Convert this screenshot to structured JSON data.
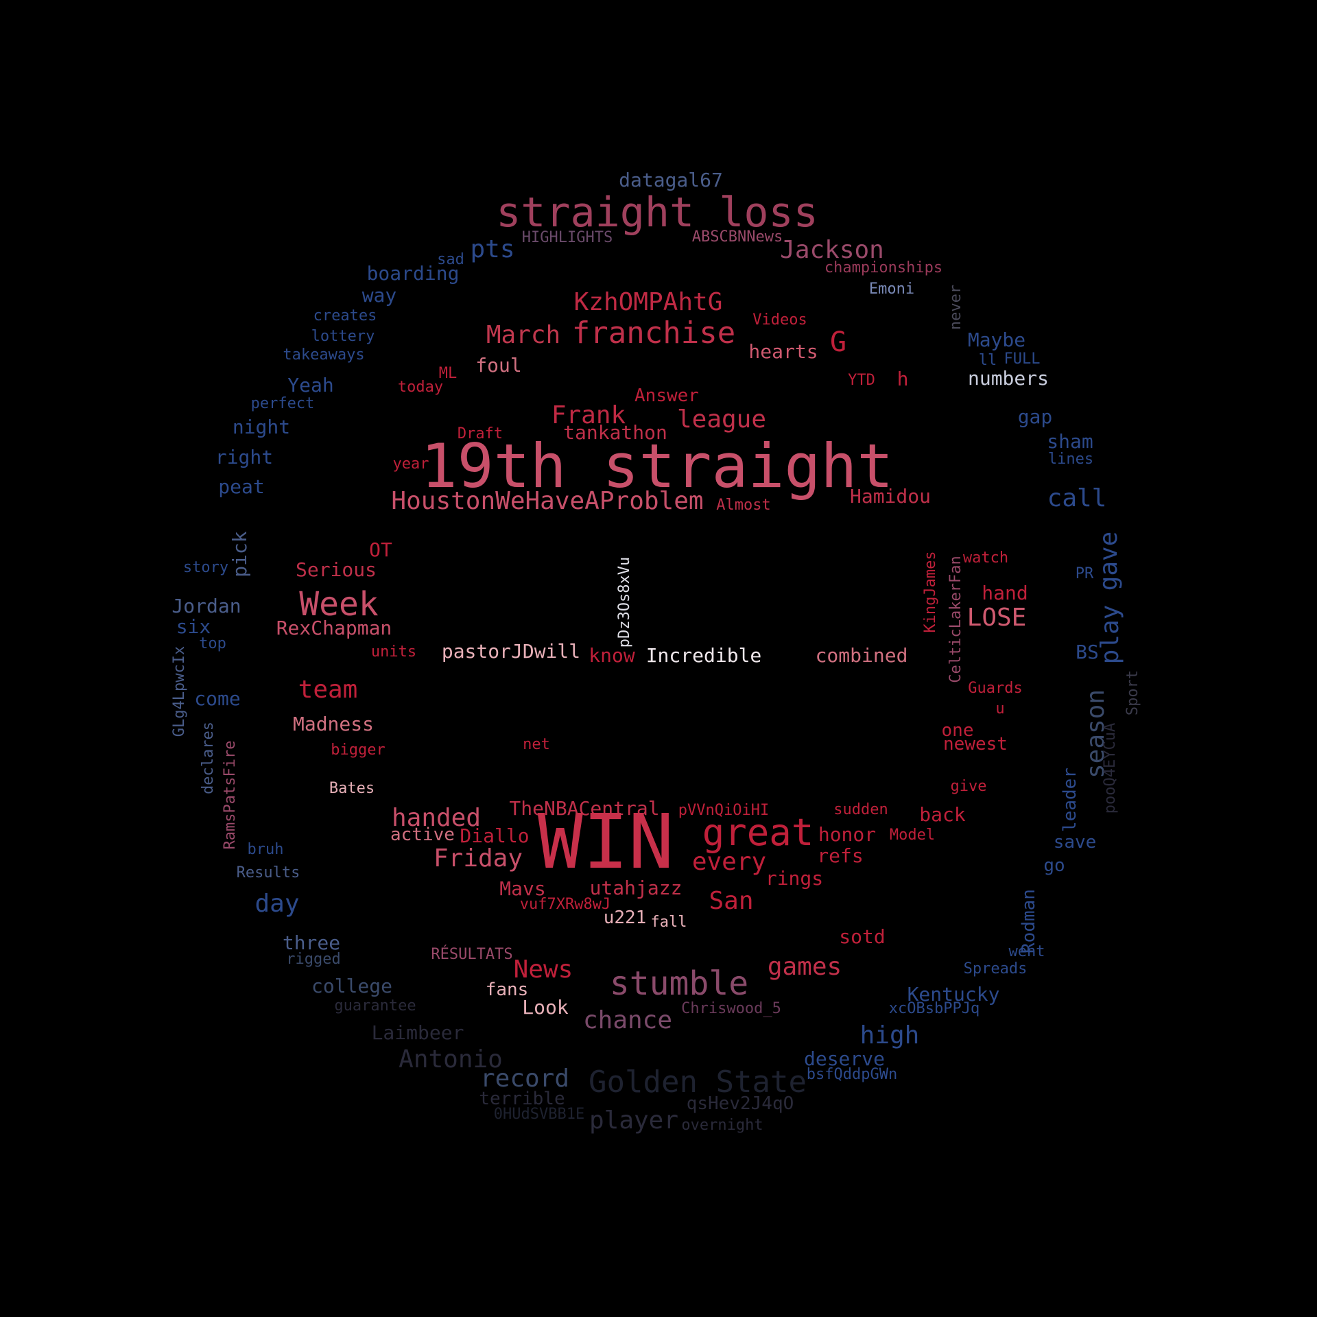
{
  "words": [
    {
      "text": "datagal67",
      "color": "#4a5d8a"
    },
    {
      "text": "straight loss",
      "color": "#a0405d"
    },
    {
      "text": "HIGHLIGHTS",
      "color": "#6a4a6a"
    },
    {
      "text": "ABSCBNNews",
      "color": "#9a4a6a"
    },
    {
      "text": "pts",
      "color": "#2c4a8c"
    },
    {
      "text": "sad",
      "color": "#2c4a8c"
    },
    {
      "text": "Jackson",
      "color": "#9a4a6a"
    },
    {
      "text": "championships",
      "color": "#9a3a5a"
    },
    {
      "text": "boarding",
      "color": "#2c4a8c"
    },
    {
      "text": "way",
      "color": "#2c4a8c"
    },
    {
      "text": "Emoni",
      "color": "#7a8ab8"
    },
    {
      "text": "never",
      "color": "#4a4a5a"
    },
    {
      "text": "KzhOMPAhtG",
      "color": "#c02a44"
    },
    {
      "text": "creates",
      "color": "#2c4a8c"
    },
    {
      "text": "Videos",
      "color": "#c0203a"
    },
    {
      "text": "lottery",
      "color": "#2c4a8c"
    },
    {
      "text": "March",
      "color": "#c0384e"
    },
    {
      "text": "franchise",
      "color": "#c0304a"
    },
    {
      "text": "G",
      "color": "#c0203a"
    },
    {
      "text": "Maybe",
      "color": "#2c4a8c"
    },
    {
      "text": "takeaways",
      "color": "#2c4a8c"
    },
    {
      "text": "hearts",
      "color": "#d05a70"
    },
    {
      "text": "ll",
      "color": "#2c4a8c"
    },
    {
      "text": "FULL",
      "color": "#2c4a8c"
    },
    {
      "text": "foul",
      "color": "#d07080"
    },
    {
      "text": "ML",
      "color": "#c0203a"
    },
    {
      "text": "Yeah",
      "color": "#2c4a8c"
    },
    {
      "text": "today",
      "color": "#c0203a"
    },
    {
      "text": "YTD",
      "color": "#c0203a"
    },
    {
      "text": "h",
      "color": "#c0203a"
    },
    {
      "text": "numbers",
      "color": "#c8ccdc"
    },
    {
      "text": "Answer",
      "color": "#c0203a"
    },
    {
      "text": "perfect",
      "color": "#2c4a8c"
    },
    {
      "text": "Frank",
      "color": "#c02a44"
    },
    {
      "text": "league",
      "color": "#c0304a"
    },
    {
      "text": "gap",
      "color": "#2c4a8c"
    },
    {
      "text": "night",
      "color": "#2c4a8c"
    },
    {
      "text": "Draft",
      "color": "#c0203a"
    },
    {
      "text": "tankathon",
      "color": "#c0304a"
    },
    {
      "text": "sham",
      "color": "#2c4a8c"
    },
    {
      "text": "right",
      "color": "#2c4a8c"
    },
    {
      "text": "19th straight",
      "color": "#c8506a"
    },
    {
      "text": "year",
      "color": "#c0203a"
    },
    {
      "text": "lines",
      "color": "#2c4a8c"
    },
    {
      "text": "peat",
      "color": "#2c4a8c"
    },
    {
      "text": "HoustonWeHaveAProblem",
      "color": "#c8506a"
    },
    {
      "text": "Almost",
      "color": "#c0304a"
    },
    {
      "text": "Hamidou",
      "color": "#c0304a"
    },
    {
      "text": "call",
      "color": "#2c4a8c"
    },
    {
      "text": "OT",
      "color": "#c0203a"
    },
    {
      "text": "pick",
      "color": "#4a5d8a"
    },
    {
      "text": "story",
      "color": "#2c4a8c"
    },
    {
      "text": "Serious",
      "color": "#c0304a"
    },
    {
      "text": "pDz3Os8xVu",
      "color": "#e0e0e8"
    },
    {
      "text": "KingJames",
      "color": "#c0203a"
    },
    {
      "text": "CelticLakerFan",
      "color": "#9a4a6a"
    },
    {
      "text": "watch",
      "color": "#c0203a"
    },
    {
      "text": "PR",
      "color": "#2c4a8c"
    },
    {
      "text": "gave",
      "color": "#2c4a8c"
    },
    {
      "text": "Week",
      "color": "#c8506a"
    },
    {
      "text": "hand",
      "color": "#c0203a"
    },
    {
      "text": "Jordan",
      "color": "#4a5d8a"
    },
    {
      "text": "LOSE",
      "color": "#d05a70"
    },
    {
      "text": "play",
      "color": "#2c4a8c"
    },
    {
      "text": "six",
      "color": "#2c4a8c"
    },
    {
      "text": "RexChapman",
      "color": "#c8506a"
    },
    {
      "text": "top",
      "color": "#2c4a8c"
    },
    {
      "text": "units",
      "color": "#c0203a"
    },
    {
      "text": "pastorJDwill",
      "color": "#e8b0b8"
    },
    {
      "text": "know",
      "color": "#c0203a"
    },
    {
      "text": "Incredible",
      "color": "#f0e8ec"
    },
    {
      "text": "combined",
      "color": "#d07080"
    },
    {
      "text": "BS",
      "color": "#2c4a8c"
    },
    {
      "text": "GLg4LpwcIx",
      "color": "#4a5d8a"
    },
    {
      "text": "Sport",
      "color": "#3a3a4a"
    },
    {
      "text": "team",
      "color": "#c0203a"
    },
    {
      "text": "Guards",
      "color": "#c0203a"
    },
    {
      "text": "come",
      "color": "#2c4a8c"
    },
    {
      "text": "u",
      "color": "#c0203a"
    },
    {
      "text": "Madness",
      "color": "#d07080"
    },
    {
      "text": "season",
      "color": "#3a4a6a"
    },
    {
      "text": "one",
      "color": "#c0203a"
    },
    {
      "text": "newest",
      "color": "#c0203a"
    },
    {
      "text": "net",
      "color": "#c0203a"
    },
    {
      "text": "bigger",
      "color": "#c0203a"
    },
    {
      "text": "pooQ4EYCuA",
      "color": "#2a2a3a"
    },
    {
      "text": "declares",
      "color": "#4a5d8a"
    },
    {
      "text": "RamsPatsFire",
      "color": "#9a4a6a"
    },
    {
      "text": "Bates",
      "color": "#e8b0b8"
    },
    {
      "text": "give",
      "color": "#c0203a"
    },
    {
      "text": "leader",
      "color": "#2c4a8c"
    },
    {
      "text": "TheNBACentral",
      "color": "#c0304a"
    },
    {
      "text": "pVVnQiOiHI",
      "color": "#c0203a"
    },
    {
      "text": "sudden",
      "color": "#c0203a"
    },
    {
      "text": "handed",
      "color": "#c8506a"
    },
    {
      "text": "back",
      "color": "#c0203a"
    },
    {
      "text": "active",
      "color": "#d07080"
    },
    {
      "text": "Diallo",
      "color": "#c0203a"
    },
    {
      "text": "WIN",
      "color": "#c8304a"
    },
    {
      "text": "great",
      "color": "#c0203a"
    },
    {
      "text": "honor",
      "color": "#c0203a"
    },
    {
      "text": "Model",
      "color": "#c0203a"
    },
    {
      "text": "bruh",
      "color": "#2c4a8c"
    },
    {
      "text": "save",
      "color": "#2c4a8c"
    },
    {
      "text": "Friday",
      "color": "#c8506a"
    },
    {
      "text": "every",
      "color": "#c0203a"
    },
    {
      "text": "refs",
      "color": "#c0203a"
    },
    {
      "text": "Results",
      "color": "#4a5d8a"
    },
    {
      "text": "go",
      "color": "#2c4a8c"
    },
    {
      "text": "rings",
      "color": "#c0203a"
    },
    {
      "text": "Rodman",
      "color": "#2c4a8c"
    },
    {
      "text": "Mavs",
      "color": "#c0304a"
    },
    {
      "text": "utahjazz",
      "color": "#c0304a"
    },
    {
      "text": "day",
      "color": "#2c4a8c"
    },
    {
      "text": "San",
      "color": "#c0203a"
    },
    {
      "text": "vuf7XRw8wJ",
      "color": "#c0203a"
    },
    {
      "text": "u221",
      "color": "#e8b0b8"
    },
    {
      "text": "fall",
      "color": "#e8b0b8"
    },
    {
      "text": "three",
      "color": "#4a5d8a"
    },
    {
      "text": "sotd",
      "color": "#c0203a"
    },
    {
      "text": "rigged",
      "color": "#3a4a6a"
    },
    {
      "text": "RÉSULTATS",
      "color": "#9a4a6a"
    },
    {
      "text": "went",
      "color": "#2c4a8c"
    },
    {
      "text": "News",
      "color": "#c0203a"
    },
    {
      "text": "games",
      "color": "#c0304a"
    },
    {
      "text": "Spreads",
      "color": "#2c4a8c"
    },
    {
      "text": "stumble",
      "color": "#8a4a6a"
    },
    {
      "text": "fans",
      "color": "#e8b0b8"
    },
    {
      "text": "college",
      "color": "#3a4a6a"
    },
    {
      "text": "Kentucky",
      "color": "#2c4a8c"
    },
    {
      "text": "Look",
      "color": "#e8b0b8"
    },
    {
      "text": "Chriswood_5",
      "color": "#6a3a5a"
    },
    {
      "text": "guarantee",
      "color": "#2a2a3a"
    },
    {
      "text": "xcOBsbPPJq",
      "color": "#2c4a8c"
    },
    {
      "text": "chance",
      "color": "#7a4a6a"
    },
    {
      "text": "Laimbeer",
      "color": "#2a2a3a"
    },
    {
      "text": "high",
      "color": "#2c4a8c"
    },
    {
      "text": "Antonio",
      "color": "#2a2a3a"
    },
    {
      "text": "deserve",
      "color": "#2c4a8c"
    },
    {
      "text": "record",
      "color": "#3a4a6a"
    },
    {
      "text": "Golden State",
      "color": "#1e2230"
    },
    {
      "text": "bsfQddpGWn",
      "color": "#2c4a8c"
    },
    {
      "text": "terrible",
      "color": "#2a2a3a"
    },
    {
      "text": "qsHev2J4qO",
      "color": "#2a2a3a"
    },
    {
      "text": "0HUdSVBB1E",
      "color": "#1e2230"
    },
    {
      "text": "player",
      "color": "#2a2a3a"
    },
    {
      "text": "overnight",
      "color": "#2a2a3a"
    }
  ]
}
